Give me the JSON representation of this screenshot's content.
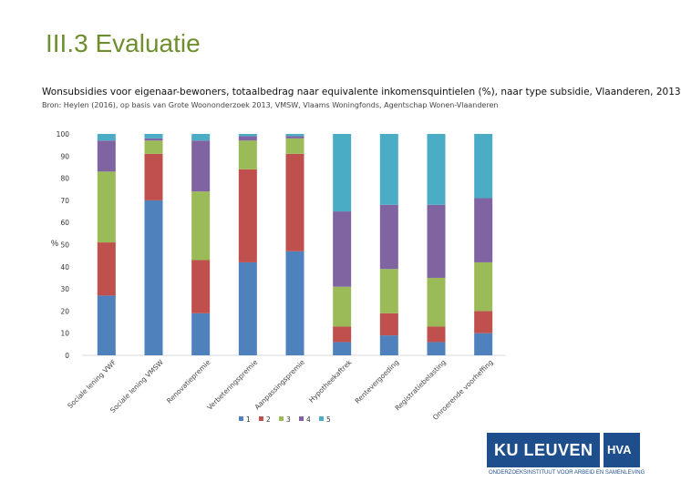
{
  "slide": {
    "title": "III.3 Evaluatie",
    "subtitle": "Wonsubsidies voor eigenaar-bewoners, totaalbedrag naar equivalente inkomensquintielen (%), naar type subsidie, Vlaanderen, 2013",
    "source": "Bron: Heylen (2016), op basis van Grote Woononderzoek 2013, VMSW, Vlaams Woningfonds, Agentschap Wonen-Vlaanderen"
  },
  "logo": {
    "name": "KU LEUVEN",
    "partner": "HVA",
    "tagline": "ONDERZOEKSINSTITUUT VOOR ARBEID EN SAMENLEVING"
  },
  "colors": {
    "q1": "#4f81bd",
    "q2": "#c0504d",
    "q3": "#9bbb59",
    "q4": "#8064a2",
    "q5": "#4bacc6"
  },
  "chart_data": {
    "type": "bar",
    "stacked": true,
    "title": "Wonsubsidies voor eigenaar-bewoners, totaalbedrag naar equivalente inkomensquintielen (%), naar type subsidie, Vlaanderen, 2013",
    "xlabel": "",
    "ylabel": "%",
    "ylim": [
      0,
      100
    ],
    "yticks": [
      0,
      10,
      20,
      30,
      40,
      50,
      60,
      70,
      80,
      90,
      100
    ],
    "legend_position": "bottom",
    "categories": [
      "Sociale lening VWF",
      "Sociale lening VMSW",
      "Renovatiepremie",
      "Verbeteringspremie",
      "Aanpassingspremie",
      "Hypotheekaftrek",
      "Rentevergoeding",
      "Registratiebelasting",
      "Onroerende voorheffing"
    ],
    "series": [
      {
        "name": "1",
        "values": [
          27,
          70,
          19,
          42,
          47,
          6,
          9,
          6,
          10
        ]
      },
      {
        "name": "2",
        "values": [
          24,
          21,
          24,
          42,
          44,
          7,
          10,
          7,
          10
        ]
      },
      {
        "name": "3",
        "values": [
          32,
          6,
          31,
          13,
          7,
          18,
          20,
          22,
          22
        ]
      },
      {
        "name": "4",
        "values": [
          14,
          1,
          23,
          2,
          1,
          34,
          29,
          33,
          29
        ]
      },
      {
        "name": "5",
        "values": [
          3,
          2,
          3,
          1,
          1,
          35,
          32,
          32,
          29
        ]
      }
    ]
  }
}
